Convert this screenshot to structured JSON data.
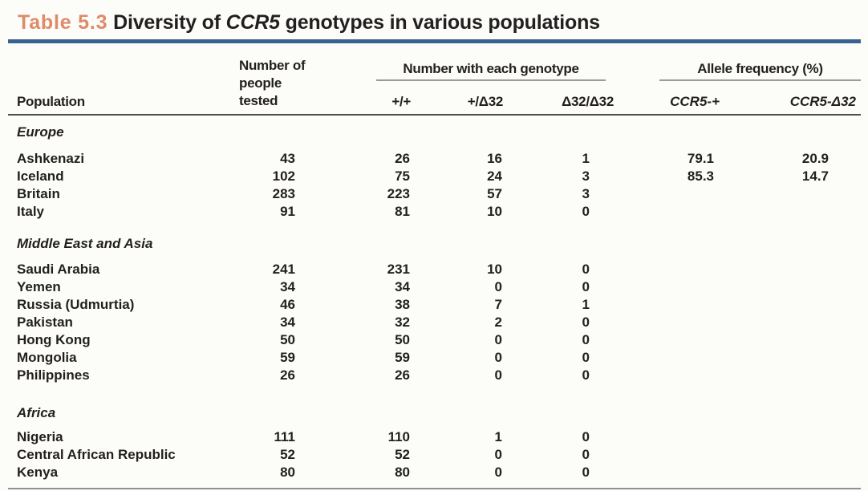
{
  "title": {
    "tag": "Table 5.3",
    "before_gene": " Diversity of ",
    "gene": "CCR5",
    "after_gene": " genotypes in various populations"
  },
  "colors": {
    "accent_orange": "#e08a68",
    "rule_blue": "#3a6290",
    "text": "#231f20",
    "header_rule": "#4d4d4f",
    "light_rule": "#9a9a9a",
    "bottom_rule": "#919195",
    "background": "#fcfcf9"
  },
  "header": {
    "population": "Population",
    "tested_lines": [
      "Number of",
      "people",
      "tested"
    ],
    "genotype_group": "Number with each genotype",
    "genotype_cols": [
      "+/+",
      "+/Δ32",
      "Δ32/Δ32"
    ],
    "allele_group": "Allele frequency (%)",
    "allele_cols": [
      "CCR5-+",
      "CCR5-Δ32"
    ]
  },
  "chart_data": {
    "type": "table",
    "title": "Table 5.3 Diversity of CCR5 genotypes in various populations",
    "columns": [
      "Population",
      "Number of people tested",
      "Number with each genotype: +/+",
      "Number with each genotype: +/Δ32",
      "Number with each genotype: Δ32/Δ32",
      "Allele frequency (%): CCR5-+",
      "Allele frequency (%): CCR5-Δ32"
    ],
    "sections": [
      {
        "name": "Europe",
        "rows": [
          [
            "Ashkenazi",
            "43",
            "26",
            "16",
            "1",
            "79.1",
            "20.9"
          ],
          [
            "Iceland",
            "102",
            "75",
            "24",
            "3",
            "85.3",
            "14.7"
          ],
          [
            "Britain",
            "283",
            "223",
            "57",
            "3",
            "",
            ""
          ],
          [
            "Italy",
            "91",
            "81",
            "10",
            "0",
            "",
            ""
          ]
        ]
      },
      {
        "name": "Middle East and Asia",
        "rows": [
          [
            "Saudi Arabia",
            "241",
            "231",
            "10",
            "0",
            "",
            ""
          ],
          [
            "Yemen",
            "34",
            "34",
            "0",
            "0",
            "",
            ""
          ],
          [
            "Russia (Udmurtia)",
            "46",
            "38",
            "7",
            "1",
            "",
            ""
          ],
          [
            "Pakistan",
            "34",
            "32",
            "2",
            "0",
            "",
            ""
          ],
          [
            "Hong Kong",
            "50",
            "50",
            "0",
            "0",
            "",
            ""
          ],
          [
            "Mongolia",
            "59",
            "59",
            "0",
            "0",
            "",
            ""
          ],
          [
            "Philippines",
            "26",
            "26",
            "0",
            "0",
            "",
            ""
          ]
        ]
      },
      {
        "name": "Africa",
        "rows": [
          [
            "Nigeria",
            "111",
            "110",
            "1",
            "0",
            "",
            ""
          ],
          [
            "Central African Republic",
            "52",
            "52",
            "0",
            "0",
            "",
            ""
          ],
          [
            "Kenya",
            "80",
            "80",
            "0",
            "0",
            "",
            ""
          ]
        ]
      }
    ]
  }
}
